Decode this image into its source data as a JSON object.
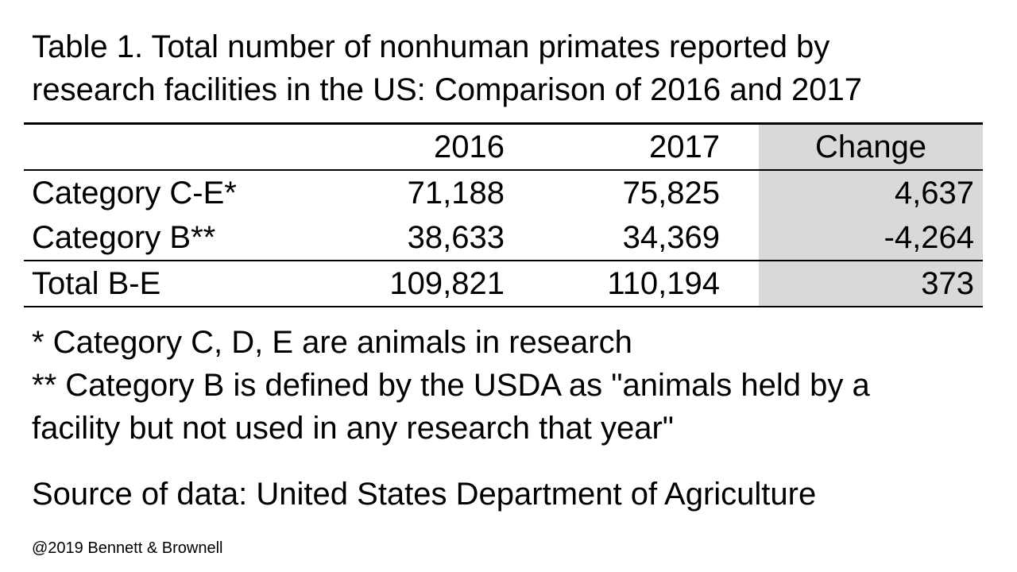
{
  "title": [
    "Table 1.  Total number of nonhuman primates reported by",
    "research facilities in the US:  Comparison of 2016 and 2017"
  ],
  "table": {
    "headers": [
      "",
      "2016",
      "2017",
      "Change"
    ],
    "rows": [
      [
        "Category C-E*",
        "71,188",
        "75,825",
        "4,637"
      ],
      [
        "Category B**",
        "38,633",
        "34,369",
        "-4,264"
      ],
      [
        "Total B-E",
        "109,821",
        "110,194",
        "373"
      ]
    ],
    "highlight_color": "#d9d9d9"
  },
  "notes": [
    "* Category C, D, E are animals in research",
    "** Category B is defined by the USDA as \"animals held by a",
    "facility but not used in any research that year\""
  ],
  "source": "Source of data:  United States Department of Agriculture",
  "copyright": "@2019 Bennett & Brownell"
}
